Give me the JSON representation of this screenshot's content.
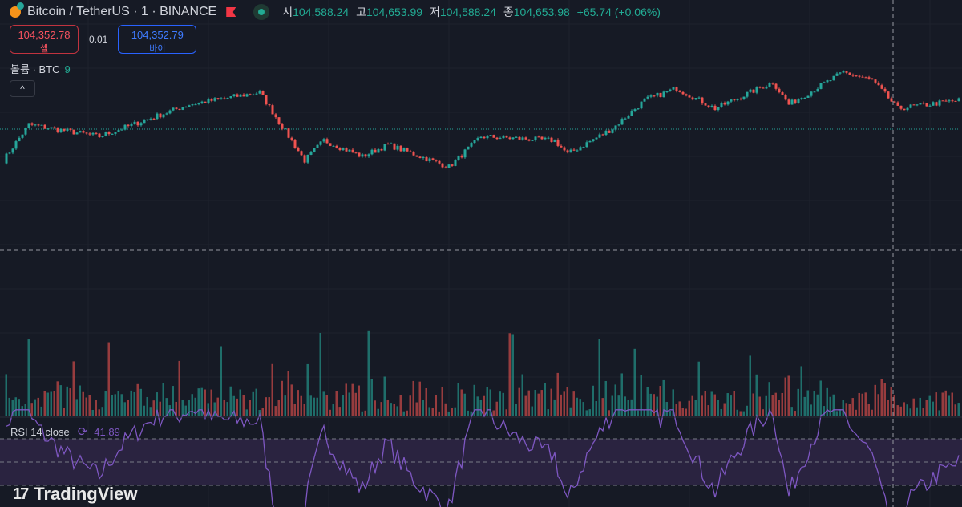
{
  "header": {
    "title": "Bitcoin / TetherUS · 1 · BINANCE",
    "ohlc": [
      {
        "label": "시",
        "value": "104,588.24"
      },
      {
        "label": "고",
        "value": "104,653.99"
      },
      {
        "label": "저",
        "value": "104,588.24"
      },
      {
        "label": "종",
        "value": "104,653.98"
      }
    ],
    "change": "+65.74 (+0.06%)"
  },
  "trade": {
    "sell_price": "104,352.78",
    "sell_label": "셀",
    "spread": "0.01",
    "buy_price": "104,352.79",
    "buy_label": "바이"
  },
  "volume": {
    "label": "볼륨 · BTC",
    "value": "9"
  },
  "collapse_icon": "^",
  "rsi": {
    "label": "RSI 14 close",
    "value": "41.89"
  },
  "logo": {
    "mark": "17",
    "text": "TradingView"
  },
  "colors": {
    "up": "#26a69a",
    "down": "#ef5350",
    "rsi": "#7e57c2",
    "bg": "#161a25"
  },
  "chart_data": {
    "type": "candlestick",
    "current_price": 104352.78,
    "price_keypoints": [
      [
        0,
        104187
      ],
      [
        8,
        104377
      ],
      [
        30,
        104314
      ],
      [
        58,
        104483
      ],
      [
        80,
        104547
      ],
      [
        94,
        104187
      ],
      [
        100,
        104293
      ],
      [
        112,
        104208
      ],
      [
        120,
        104271
      ],
      [
        139,
        104153
      ],
      [
        149,
        104314
      ],
      [
        172,
        104293
      ],
      [
        176,
        104221
      ],
      [
        190,
        104356
      ],
      [
        200,
        104505
      ],
      [
        210,
        104568
      ],
      [
        222,
        104462
      ],
      [
        240,
        104602
      ],
      [
        245,
        104483
      ],
      [
        262,
        104653
      ],
      [
        271,
        104611
      ],
      [
        279,
        104462
      ],
      [
        298,
        104505
      ]
    ],
    "rsi_levels": [
      70,
      50,
      30
    ]
  }
}
